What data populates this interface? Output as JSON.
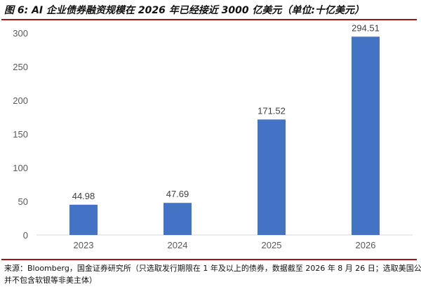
{
  "title": "图 6: AI 企业债券融资规模在 2026 年已经接近 3000 亿美元（单位:十亿美元）",
  "source_line1": "来源：Bloomberg，国金证券研究所（只选取发行期限在 1 年及以上的债券，数据截至 2026 年 8 月 26 日；选取美国公司，",
  "source_line2": "并不包含软银等非美主体）",
  "colors": {
    "bar": "#4472c4",
    "accent_rule": "#a31515",
    "axis_text": "#595959",
    "baseline": "#d9d9d9"
  },
  "chart_data": {
    "type": "bar",
    "categories": [
      "2023",
      "2024",
      "2025",
      "2026"
    ],
    "values": [
      44.98,
      47.69,
      171.52,
      294.51
    ],
    "value_labels": [
      "44.98",
      "47.69",
      "171.52",
      "294.51"
    ],
    "title": "",
    "xlabel": "",
    "ylabel": "",
    "ylim": [
      0,
      300
    ],
    "yticks": [
      0,
      50,
      100,
      150,
      200,
      250,
      300
    ],
    "grid": false,
    "legend": "none"
  }
}
